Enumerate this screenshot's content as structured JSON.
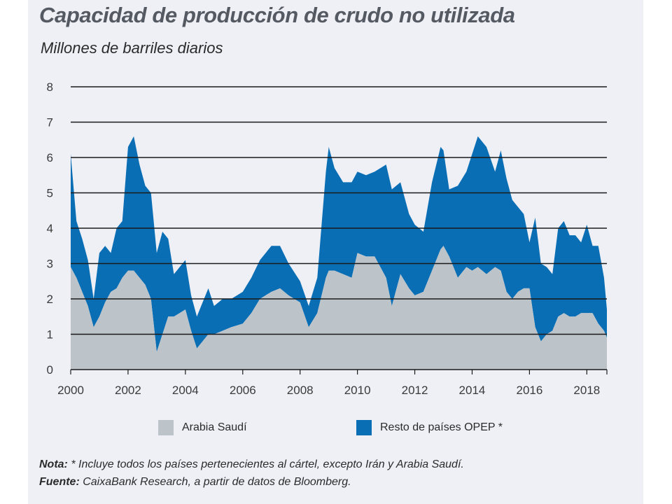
{
  "header": {
    "title": "Capacidad de producción de crudo no utilizada",
    "subtitle": "Millones de barriles diarios"
  },
  "legend": {
    "saudi": "Arabia Saudí",
    "rest": "Resto de países OPEP *"
  },
  "footer": {
    "note_label": "Nota:",
    "note_text": " * Incluye todos los países pertenecientes al cártel, excepto Irán y Arabia Saudí.",
    "source_label": "Fuente:",
    "source_text": " CaixaBank Research, a partir de datos de Bloomberg."
  },
  "colors": {
    "saudi": "#bcc3c9",
    "rest": "#0a6eb5",
    "grid": "#1a1a1a"
  },
  "chart_data": {
    "type": "area",
    "stacked": true,
    "title": "Capacidad de producción de crudo no utilizada",
    "ylabel": "Millones de barriles diarios",
    "xlim": [
      2000,
      2018.7
    ],
    "ylim": [
      0,
      8
    ],
    "x_ticks": [
      2000,
      2002,
      2004,
      2006,
      2008,
      2010,
      2012,
      2014,
      2016,
      2018
    ],
    "y_ticks": [
      0,
      1,
      2,
      3,
      4,
      5,
      6,
      7,
      8
    ],
    "grid": true,
    "legend_position": "bottom",
    "x": [
      2000.0,
      2000.2,
      2000.4,
      2000.6,
      2000.8,
      2001.0,
      2001.2,
      2001.4,
      2001.6,
      2001.8,
      2002.0,
      2002.2,
      2002.4,
      2002.6,
      2002.8,
      2003.0,
      2003.2,
      2003.4,
      2003.6,
      2003.8,
      2004.0,
      2004.2,
      2004.4,
      2004.6,
      2004.8,
      2005.0,
      2005.3,
      2005.6,
      2006.0,
      2006.3,
      2006.6,
      2007.0,
      2007.3,
      2007.6,
      2008.0,
      2008.3,
      2008.6,
      2008.9,
      2009.0,
      2009.2,
      2009.5,
      2009.8,
      2010.0,
      2010.3,
      2010.6,
      2011.0,
      2011.2,
      2011.5,
      2011.8,
      2012.0,
      2012.3,
      2012.6,
      2012.9,
      2013.0,
      2013.2,
      2013.5,
      2013.8,
      2014.0,
      2014.2,
      2014.5,
      2014.8,
      2015.0,
      2015.2,
      2015.4,
      2015.6,
      2015.8,
      2016.0,
      2016.2,
      2016.4,
      2016.6,
      2016.8,
      2017.0,
      2017.2,
      2017.4,
      2017.6,
      2017.8,
      2018.0,
      2018.2,
      2018.4,
      2018.6,
      2018.7
    ],
    "series": [
      {
        "name": "Arabia Saudí",
        "values": [
          2.9,
          2.6,
          2.2,
          1.8,
          1.2,
          1.5,
          1.9,
          2.2,
          2.3,
          2.6,
          2.8,
          2.8,
          2.6,
          2.4,
          2.0,
          0.5,
          1.0,
          1.5,
          1.5,
          1.6,
          1.7,
          1.1,
          0.6,
          0.8,
          1.0,
          1.0,
          1.1,
          1.2,
          1.3,
          1.6,
          2.0,
          2.2,
          2.3,
          2.1,
          1.9,
          1.2,
          1.6,
          2.6,
          2.8,
          2.8,
          2.7,
          2.6,
          3.3,
          3.2,
          3.2,
          2.6,
          1.8,
          2.7,
          2.3,
          2.1,
          2.2,
          2.8,
          3.4,
          3.5,
          3.2,
          2.6,
          2.9,
          2.8,
          2.9,
          2.7,
          2.9,
          2.8,
          2.2,
          2.0,
          2.2,
          2.3,
          2.3,
          1.2,
          0.8,
          1.0,
          1.1,
          1.5,
          1.6,
          1.5,
          1.5,
          1.6,
          1.6,
          1.6,
          1.3,
          1.1,
          0.9
        ]
      },
      {
        "name": "Resto de países OPEP *",
        "values": [
          3.2,
          1.6,
          1.5,
          1.3,
          0.8,
          1.8,
          1.6,
          1.1,
          1.7,
          1.6,
          3.5,
          3.8,
          3.2,
          2.8,
          3.0,
          2.8,
          2.9,
          2.2,
          1.2,
          1.3,
          1.4,
          1.0,
          0.9,
          1.1,
          1.3,
          0.8,
          0.9,
          0.8,
          0.9,
          1.0,
          1.1,
          1.3,
          1.2,
          0.9,
          0.6,
          0.6,
          1.0,
          3.0,
          3.5,
          2.9,
          2.6,
          2.7,
          2.3,
          2.3,
          2.4,
          3.2,
          3.3,
          2.6,
          2.1,
          2.0,
          1.7,
          2.5,
          2.9,
          2.7,
          1.9,
          2.6,
          2.7,
          3.3,
          3.7,
          3.6,
          2.7,
          3.4,
          3.2,
          2.8,
          2.4,
          2.1,
          1.3,
          3.1,
          2.2,
          1.9,
          1.6,
          2.5,
          2.6,
          2.3,
          2.3,
          2.0,
          2.5,
          1.9,
          2.2,
          1.5,
          0.8
        ]
      }
    ]
  }
}
